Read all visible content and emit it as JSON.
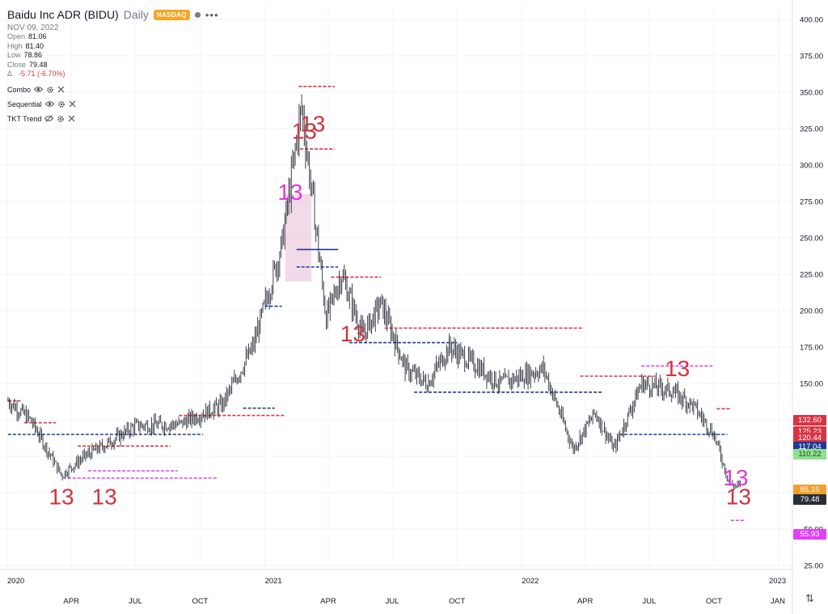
{
  "header": {
    "symbol_title": "Baidu Inc ADR (BIDU)",
    "timeframe": "Daily",
    "exchange_badge": "NASDAQ",
    "date": "NOV 09, 2022",
    "ohlc": [
      {
        "label": "Open",
        "value": "81.06"
      },
      {
        "label": "High",
        "value": "81.40"
      },
      {
        "label": "Low",
        "value": "78.86"
      },
      {
        "label": "Close",
        "value": "79.48"
      }
    ],
    "change_label": "Δ",
    "change_value": "-5.71 (-6.70%)"
  },
  "indicators": [
    {
      "name": "Combo",
      "visible": true
    },
    {
      "name": "Sequential",
      "visible": true
    },
    {
      "name": "TKT Trend",
      "visible": false
    }
  ],
  "colors": {
    "candle": "#2a2e39",
    "sell_level": "#d63545",
    "buy_level": "#1f3a93",
    "pink_level": "#e040fb",
    "label_red": "#d1343f",
    "label_magenta": "#de3ad6",
    "zone_fill": "#e8b6d3"
  },
  "icons": {
    "visible": "eye-icon",
    "hidden": "eye-crossed-icon",
    "settings": "gear-icon",
    "remove": "close-icon",
    "reset": "arrows-up-down-icon"
  },
  "chart_data": {
    "type": "candlestick",
    "title": "Baidu Inc ADR (BIDU) Daily",
    "yaxis": {
      "ticks": [
        "400.00",
        "375.00",
        "350.00",
        "325.00",
        "300.00",
        "275.00",
        "250.00",
        "225.00",
        "200.00",
        "175.00",
        "150.00",
        "125.00",
        "100.00",
        "75.00",
        "50.00",
        "25.00"
      ],
      "range": [
        25,
        405
      ]
    },
    "xaxis": {
      "ticks": [
        "2020",
        "APR",
        "JUL",
        "OCT",
        "2021",
        "APR",
        "JUL",
        "OCT",
        "2022",
        "APR",
        "JUL",
        "OCT",
        "2023",
        "JAN"
      ]
    },
    "grid": true,
    "price_path": [
      {
        "date": "2020-01-02",
        "close": 138
      },
      {
        "date": "2020-02-03",
        "close": 125
      },
      {
        "date": "2020-03-18",
        "close": 87
      },
      {
        "date": "2020-04-20",
        "close": 100
      },
      {
        "date": "2020-05-20",
        "close": 108
      },
      {
        "date": "2020-07-01",
        "close": 121
      },
      {
        "date": "2020-09-01",
        "close": 122
      },
      {
        "date": "2020-11-01",
        "close": 135
      },
      {
        "date": "2020-12-15",
        "close": 175
      },
      {
        "date": "2021-01-25",
        "close": 245
      },
      {
        "date": "2021-02-22",
        "close": 340
      },
      {
        "date": "2021-03-15",
        "close": 255
      },
      {
        "date": "2021-03-29",
        "close": 195
      },
      {
        "date": "2021-04-20",
        "close": 225
      },
      {
        "date": "2021-05-20",
        "close": 183
      },
      {
        "date": "2021-06-15",
        "close": 205
      },
      {
        "date": "2021-07-20",
        "close": 160
      },
      {
        "date": "2021-08-20",
        "close": 150
      },
      {
        "date": "2021-09-20",
        "close": 175
      },
      {
        "date": "2021-10-20",
        "close": 165
      },
      {
        "date": "2021-12-01",
        "close": 150
      },
      {
        "date": "2022-02-01",
        "close": 160
      },
      {
        "date": "2022-03-15",
        "close": 105
      },
      {
        "date": "2022-04-15",
        "close": 130
      },
      {
        "date": "2022-05-12",
        "close": 105
      },
      {
        "date": "2022-06-20",
        "close": 150
      },
      {
        "date": "2022-08-01",
        "close": 145
      },
      {
        "date": "2022-09-01",
        "close": 135
      },
      {
        "date": "2022-10-01",
        "close": 115
      },
      {
        "date": "2022-10-24",
        "close": 80
      },
      {
        "date": "2022-11-09",
        "close": 79.48
      }
    ],
    "price_tags": [
      {
        "value": "132.60",
        "color": "#d63545"
      },
      {
        "value": "125.23",
        "color": "#d63545"
      },
      {
        "value": "120.44",
        "color": "#d63545"
      },
      {
        "value": "117.04",
        "color": "#1f3a93"
      },
      {
        "value": "110.22",
        "color": "#8fe08f"
      },
      {
        "value": "85.15",
        "color": "#f0a030"
      },
      {
        "value": "79.48",
        "color": "#2a2e39"
      },
      {
        "value": "55.93",
        "color": "#e040fb"
      }
    ],
    "annotations": [
      {
        "text": "13",
        "date": "2020-03-18",
        "price": 67,
        "color": "#d1343f"
      },
      {
        "text": "13",
        "date": "2020-05-18",
        "price": 67,
        "color": "#d1343f"
      },
      {
        "text": "13",
        "date": "2021-02-06",
        "price": 276,
        "color": "#de3ad6"
      },
      {
        "text": "13",
        "date": "2021-02-26",
        "price": 318,
        "color": "#d1343f"
      },
      {
        "text": "13",
        "date": "2021-03-10",
        "price": 323,
        "color": "#d1343f"
      },
      {
        "text": "13",
        "date": "2021-05-06",
        "price": 179,
        "color": "#d1343f"
      },
      {
        "text": "13",
        "date": "2022-08-10",
        "price": 155,
        "color": "#d1343f"
      },
      {
        "text": "13",
        "date": "2022-11-01",
        "price": 80,
        "color": "#de3ad6"
      },
      {
        "text": "13",
        "date": "2022-11-05",
        "price": 67,
        "color": "#d1343f"
      }
    ],
    "levels": [
      {
        "from": "2020-01-02",
        "to": "2020-01-20",
        "price": 138,
        "color": "#d63545",
        "style": "dashed"
      },
      {
        "from": "2020-01-25",
        "to": "2020-03-10",
        "price": 123,
        "color": "#d63545",
        "style": "dashed"
      },
      {
        "from": "2020-01-02",
        "to": "2020-10-05",
        "price": 115,
        "color": "#1f3a93",
        "style": "dashed"
      },
      {
        "from": "2020-04-10",
        "to": "2020-08-20",
        "price": 107,
        "color": "#d63545",
        "style": "dashed"
      },
      {
        "from": "2020-04-25",
        "to": "2020-08-30",
        "price": 90,
        "color": "#e040fb",
        "style": "dashed"
      },
      {
        "from": "2020-03-20",
        "to": "2020-10-25",
        "price": 85,
        "color": "#e040fb",
        "style": "dashed"
      },
      {
        "from": "2020-09-01",
        "to": "2021-01-30",
        "price": 128,
        "color": "#d63545",
        "style": "dashed"
      },
      {
        "from": "2020-12-01",
        "to": "2021-01-15",
        "price": 133,
        "color": "#1f3a93",
        "style": "dashed"
      },
      {
        "from": "2021-01-01",
        "to": "2021-01-25",
        "price": 203,
        "color": "#1f3a93",
        "style": "dashed"
      },
      {
        "from": "2021-02-18",
        "to": "2021-04-10",
        "price": 354,
        "color": "#d63545",
        "style": "dashed"
      },
      {
        "from": "2021-02-20",
        "to": "2021-04-10",
        "price": 311,
        "color": "#d63545",
        "style": "dashed"
      },
      {
        "from": "2021-02-15",
        "to": "2021-04-15",
        "price": 242,
        "color": "#1f3a93",
        "style": "solid"
      },
      {
        "from": "2021-02-15",
        "to": "2021-04-15",
        "price": 230,
        "color": "#1f3a93",
        "style": "dashed"
      },
      {
        "from": "2021-04-05",
        "to": "2021-06-15",
        "price": 223,
        "color": "#d63545",
        "style": "dashed"
      },
      {
        "from": "2021-05-01",
        "to": "2021-10-01",
        "price": 178,
        "color": "#1f3a93",
        "style": "dashed"
      },
      {
        "from": "2021-06-20",
        "to": "2022-03-30",
        "price": 188,
        "color": "#d63545",
        "style": "dashed"
      },
      {
        "from": "2021-08-01",
        "to": "2022-04-25",
        "price": 144,
        "color": "#1f3a93",
        "style": "dashed"
      },
      {
        "from": "2022-03-25",
        "to": "2022-07-10",
        "price": 155,
        "color": "#d63545",
        "style": "dashed"
      },
      {
        "from": "2022-06-20",
        "to": "2022-09-30",
        "price": 162,
        "color": "#e040fb",
        "style": "dashed"
      },
      {
        "from": "2022-05-20",
        "to": "2022-10-20",
        "price": 115,
        "color": "#1f3a93",
        "style": "dashed"
      },
      {
        "from": "2022-10-05",
        "to": "2022-10-25",
        "price": 132.6,
        "color": "#d63545",
        "style": "dashed"
      },
      {
        "from": "2022-10-25",
        "to": "2022-11-15",
        "price": 55.93,
        "color": "#e040fb",
        "style": "dashed"
      }
    ],
    "zones": [
      {
        "from": "2021-01-30",
        "to": "2021-03-08",
        "top": 280,
        "bottom": 220,
        "color": "#e8b6d3"
      }
    ]
  }
}
